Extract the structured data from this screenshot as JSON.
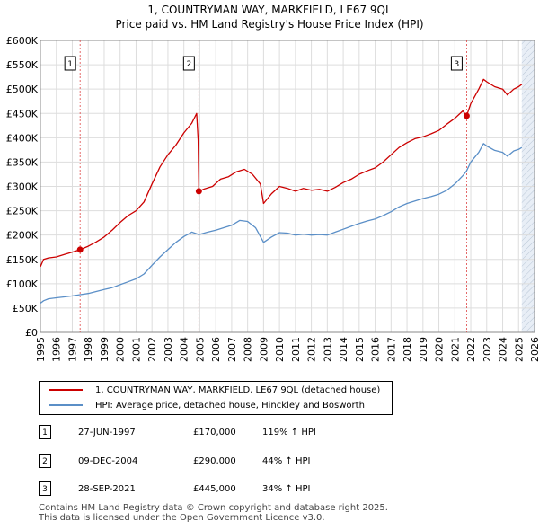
{
  "title_line1": "1, COUNTRYMAN WAY, MARKFIELD, LE67 9QL",
  "title_line2": "Price paid vs. HM Land Registry's House Price Index (HPI)",
  "colors": {
    "property": "#cc0000",
    "hpi": "#5b8fc7",
    "grid": "#dddddd",
    "future_band": "#e8eef6"
  },
  "chart_data": {
    "type": "line",
    "xlim": [
      1995,
      2026
    ],
    "ylim": [
      0,
      600000
    ],
    "x_ticks": [
      1995,
      1996,
      1997,
      1998,
      1999,
      2000,
      2001,
      2002,
      2003,
      2004,
      2005,
      2006,
      2007,
      2008,
      2009,
      2010,
      2011,
      2012,
      2013,
      2014,
      2015,
      2016,
      2017,
      2018,
      2019,
      2020,
      2021,
      2022,
      2023,
      2024,
      2025,
      2026
    ],
    "y_ticks": [
      0,
      50000,
      100000,
      150000,
      200000,
      250000,
      300000,
      350000,
      400000,
      450000,
      500000,
      550000,
      600000
    ],
    "y_tick_labels": [
      "£0",
      "£50K",
      "£100K",
      "£150K",
      "£200K",
      "£250K",
      "£300K",
      "£350K",
      "£400K",
      "£450K",
      "£500K",
      "£550K",
      "£600K"
    ],
    "data_end_year": 2025.2,
    "series": [
      {
        "name": "1, COUNTRYMAN WAY, MARKFIELD, LE67 9QL (detached house)",
        "points": [
          [
            1995.0,
            135000
          ],
          [
            1995.2,
            150000
          ],
          [
            1995.5,
            153000
          ],
          [
            1996.0,
            155000
          ],
          [
            1996.5,
            160000
          ],
          [
            1997.0,
            165000
          ],
          [
            1997.49,
            170000
          ],
          [
            1998.0,
            177000
          ],
          [
            1998.5,
            186000
          ],
          [
            1999.0,
            196000
          ],
          [
            1999.5,
            210000
          ],
          [
            2000.0,
            226000
          ],
          [
            2000.5,
            240000
          ],
          [
            2001.0,
            250000
          ],
          [
            2001.5,
            268000
          ],
          [
            2002.0,
            305000
          ],
          [
            2002.5,
            340000
          ],
          [
            2003.0,
            365000
          ],
          [
            2003.5,
            385000
          ],
          [
            2004.0,
            410000
          ],
          [
            2004.5,
            430000
          ],
          [
            2004.8,
            450000
          ],
          [
            2004.9,
            395000
          ],
          [
            2004.94,
            290000
          ],
          [
            2005.3,
            295000
          ],
          [
            2005.8,
            300000
          ],
          [
            2006.3,
            315000
          ],
          [
            2006.8,
            320000
          ],
          [
            2007.3,
            330000
          ],
          [
            2007.8,
            335000
          ],
          [
            2008.3,
            325000
          ],
          [
            2008.8,
            305000
          ],
          [
            2009.0,
            265000
          ],
          [
            2009.5,
            285000
          ],
          [
            2010.0,
            300000
          ],
          [
            2010.5,
            296000
          ],
          [
            2011.0,
            290000
          ],
          [
            2011.5,
            296000
          ],
          [
            2012.0,
            292000
          ],
          [
            2012.5,
            294000
          ],
          [
            2013.0,
            290000
          ],
          [
            2013.5,
            298000
          ],
          [
            2014.0,
            308000
          ],
          [
            2014.5,
            315000
          ],
          [
            2015.0,
            325000
          ],
          [
            2015.5,
            332000
          ],
          [
            2016.0,
            338000
          ],
          [
            2016.5,
            350000
          ],
          [
            2017.0,
            365000
          ],
          [
            2017.5,
            380000
          ],
          [
            2018.0,
            390000
          ],
          [
            2018.5,
            398000
          ],
          [
            2019.0,
            402000
          ],
          [
            2019.5,
            408000
          ],
          [
            2020.0,
            415000
          ],
          [
            2020.5,
            428000
          ],
          [
            2021.0,
            440000
          ],
          [
            2021.5,
            455000
          ],
          [
            2021.74,
            445000
          ],
          [
            2022.0,
            470000
          ],
          [
            2022.5,
            500000
          ],
          [
            2022.8,
            520000
          ],
          [
            2023.0,
            515000
          ],
          [
            2023.5,
            505000
          ],
          [
            2024.0,
            500000
          ],
          [
            2024.3,
            488000
          ],
          [
            2024.7,
            500000
          ],
          [
            2025.0,
            505000
          ],
          [
            2025.2,
            510000
          ]
        ]
      },
      {
        "name": "HPI: Average price, detached house, Hinckley and Bosworth",
        "points": [
          [
            1995.0,
            60000
          ],
          [
            1995.2,
            65000
          ],
          [
            1995.5,
            69000
          ],
          [
            1996.0,
            71000
          ],
          [
            1996.5,
            73000
          ],
          [
            1997.0,
            75000
          ],
          [
            1997.49,
            77500
          ],
          [
            1998.0,
            80000
          ],
          [
            1998.5,
            84000
          ],
          [
            1999.0,
            88000
          ],
          [
            1999.5,
            92000
          ],
          [
            2000.0,
            98000
          ],
          [
            2000.5,
            104000
          ],
          [
            2001.0,
            110000
          ],
          [
            2001.5,
            120000
          ],
          [
            2002.0,
            138000
          ],
          [
            2002.5,
            155000
          ],
          [
            2003.0,
            170000
          ],
          [
            2003.5,
            185000
          ],
          [
            2004.0,
            197000
          ],
          [
            2004.5,
            206000
          ],
          [
            2004.94,
            201000
          ],
          [
            2005.5,
            206000
          ],
          [
            2006.0,
            210000
          ],
          [
            2006.5,
            215000
          ],
          [
            2007.0,
            220000
          ],
          [
            2007.5,
            230000
          ],
          [
            2008.0,
            228000
          ],
          [
            2008.5,
            215000
          ],
          [
            2009.0,
            185000
          ],
          [
            2009.5,
            196000
          ],
          [
            2010.0,
            205000
          ],
          [
            2010.5,
            204000
          ],
          [
            2011.0,
            200000
          ],
          [
            2011.5,
            202000
          ],
          [
            2012.0,
            200000
          ],
          [
            2012.5,
            201000
          ],
          [
            2013.0,
            200000
          ],
          [
            2013.5,
            206000
          ],
          [
            2014.0,
            212000
          ],
          [
            2014.5,
            218000
          ],
          [
            2015.0,
            224000
          ],
          [
            2015.5,
            229000
          ],
          [
            2016.0,
            233000
          ],
          [
            2016.5,
            240000
          ],
          [
            2017.0,
            248000
          ],
          [
            2017.5,
            258000
          ],
          [
            2018.0,
            265000
          ],
          [
            2018.5,
            270000
          ],
          [
            2019.0,
            275000
          ],
          [
            2019.5,
            279000
          ],
          [
            2020.0,
            284000
          ],
          [
            2020.5,
            292000
          ],
          [
            2021.0,
            305000
          ],
          [
            2021.5,
            322000
          ],
          [
            2021.74,
            332000
          ],
          [
            2022.0,
            350000
          ],
          [
            2022.5,
            370000
          ],
          [
            2022.8,
            388000
          ],
          [
            2023.0,
            383000
          ],
          [
            2023.5,
            374000
          ],
          [
            2024.0,
            370000
          ],
          [
            2024.3,
            362000
          ],
          [
            2024.7,
            373000
          ],
          [
            2025.0,
            376000
          ],
          [
            2025.2,
            380000
          ]
        ]
      }
    ],
    "transactions": [
      {
        "marker": "1",
        "year": 1997.49,
        "price": 170000
      },
      {
        "marker": "2",
        "year": 2004.94,
        "price": 290000
      },
      {
        "marker": "3",
        "year": 2021.74,
        "price": 445000
      }
    ]
  },
  "legend": {
    "property_label": "1, COUNTRYMAN WAY, MARKFIELD, LE67 9QL (detached house)",
    "hpi_label": "HPI: Average price, detached house, Hinckley and Bosworth"
  },
  "transactions_table": [
    {
      "marker": "1",
      "date": "27-JUN-1997",
      "price": "£170,000",
      "hpi": "119% ↑ HPI"
    },
    {
      "marker": "2",
      "date": "09-DEC-2004",
      "price": "£290,000",
      "hpi": "44% ↑ HPI"
    },
    {
      "marker": "3",
      "date": "28-SEP-2021",
      "price": "£445,000",
      "hpi": "34% ↑ HPI"
    }
  ],
  "footer": {
    "line1": "Contains HM Land Registry data © Crown copyright and database right 2025.",
    "line2": "This data is licensed under the Open Government Licence v3.0."
  }
}
